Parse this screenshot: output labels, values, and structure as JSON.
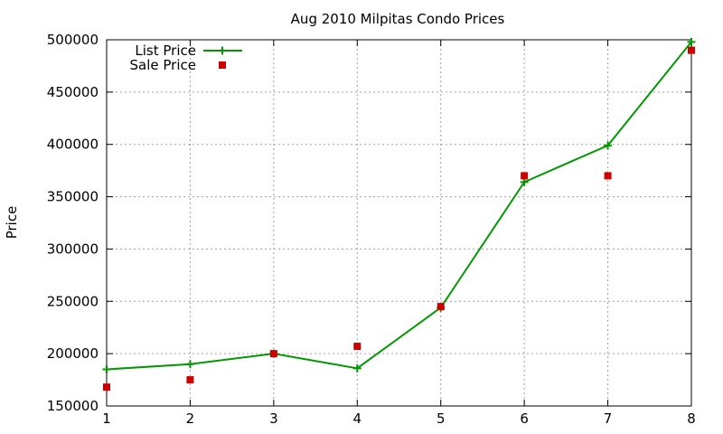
{
  "chart_data": {
    "type": "line",
    "title": "Aug 2010 Milpitas Condo Prices",
    "xlabel": "",
    "ylabel": "Price",
    "x": [
      1,
      2,
      3,
      4,
      5,
      6,
      7,
      8
    ],
    "xlim": [
      1,
      8
    ],
    "ylim": [
      150000,
      500000
    ],
    "x_ticks": [
      1,
      2,
      3,
      4,
      5,
      6,
      7,
      8
    ],
    "y_ticks": [
      150000,
      200000,
      250000,
      300000,
      350000,
      400000,
      450000,
      500000
    ],
    "grid": true,
    "legend_position": "top-left",
    "series": [
      {
        "name": "List Price",
        "style": "line+points",
        "marker": "plus",
        "color": "#009900",
        "values": [
          185000,
          190000,
          200000,
          186000,
          244000,
          364000,
          399000,
          498000
        ]
      },
      {
        "name": "Sale Price",
        "style": "points",
        "marker": "square",
        "color": "#cc0000",
        "values": [
          168000,
          175000,
          200000,
          207000,
          245000,
          370000,
          370000,
          490000
        ]
      }
    ]
  }
}
